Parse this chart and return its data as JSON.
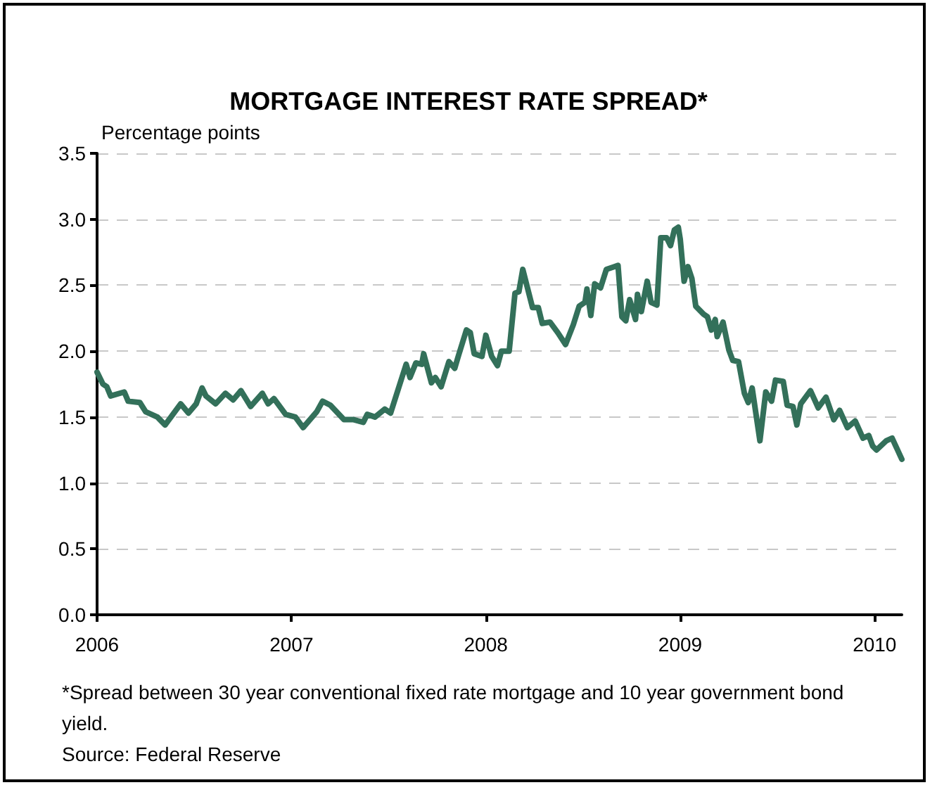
{
  "chart_data": {
    "type": "line",
    "title": "MORTGAGE INTEREST RATE SPREAD*",
    "ylabel": "Percentage points",
    "annotations": [
      "*Spread between 30 year conventional fixed rate mortgage and 10 year government bond yield.",
      "Source: Federal Reserve"
    ],
    "x": [
      2006.0,
      2006.03,
      2006.05,
      2006.07,
      2006.14,
      2006.16,
      2006.22,
      2006.25,
      2006.31,
      2006.35,
      2006.43,
      2006.47,
      2006.51,
      2006.54,
      2006.56,
      2006.61,
      2006.66,
      2006.7,
      2006.74,
      2006.79,
      2006.85,
      2006.88,
      2006.91,
      2006.97,
      2007.02,
      2007.06,
      2007.13,
      2007.16,
      2007.2,
      2007.27,
      2007.32,
      2007.37,
      2007.39,
      2007.43,
      2007.48,
      2007.51,
      2007.59,
      2007.61,
      2007.64,
      2007.67,
      2007.68,
      2007.72,
      2007.74,
      2007.77,
      2007.81,
      2007.84,
      2007.86,
      2007.9,
      2007.92,
      2007.94,
      2007.98,
      2008.0,
      2008.03,
      2008.06,
      2008.08,
      2008.12,
      2008.15,
      2008.17,
      2008.19,
      2008.24,
      2008.27,
      2008.29,
      2008.33,
      2008.37,
      2008.41,
      2008.45,
      2008.48,
      2008.51,
      2008.52,
      2008.54,
      2008.56,
      2008.59,
      2008.62,
      2008.66,
      2008.68,
      2008.7,
      2008.72,
      2008.74,
      2008.77,
      2008.78,
      2008.8,
      2008.83,
      2008.85,
      2008.88,
      2008.9,
      2008.93,
      2008.95,
      2008.97,
      2008.99,
      2009.0,
      2009.02,
      2009.04,
      2009.06,
      2009.08,
      2009.12,
      2009.14,
      2009.16,
      2009.18,
      2009.19,
      2009.22,
      2009.25,
      2009.27,
      2009.3,
      2009.33,
      2009.35,
      2009.37,
      2009.41,
      2009.44,
      2009.47,
      2009.49,
      2009.53,
      2009.55,
      2009.58,
      2009.6,
      2009.62,
      2009.67,
      2009.71,
      2009.75,
      2009.79,
      2009.82,
      2009.86,
      2009.9,
      2009.94,
      2009.97,
      2009.99,
      2010.01,
      2010.06,
      2010.09,
      2010.14
    ],
    "series": [
      {
        "color": "#33705a",
        "values": [
          1.84,
          1.75,
          1.73,
          1.66,
          1.69,
          1.62,
          1.61,
          1.54,
          1.5,
          1.44,
          1.6,
          1.53,
          1.6,
          1.72,
          1.66,
          1.6,
          1.68,
          1.63,
          1.7,
          1.58,
          1.68,
          1.6,
          1.64,
          1.52,
          1.5,
          1.42,
          1.54,
          1.62,
          1.59,
          1.48,
          1.48,
          1.46,
          1.52,
          1.5,
          1.56,
          1.53,
          1.9,
          1.8,
          1.91,
          1.9,
          1.98,
          1.76,
          1.8,
          1.73,
          1.92,
          1.87,
          1.97,
          2.16,
          2.14,
          1.98,
          1.96,
          2.12,
          1.96,
          1.89,
          2.0,
          2.0,
          2.44,
          2.45,
          2.62,
          2.33,
          2.33,
          2.21,
          2.22,
          2.14,
          2.05,
          2.2,
          2.34,
          2.37,
          2.47,
          2.27,
          2.51,
          2.48,
          2.62,
          2.64,
          2.65,
          2.26,
          2.23,
          2.39,
          2.24,
          2.43,
          2.3,
          2.53,
          2.37,
          2.35,
          2.86,
          2.86,
          2.8,
          2.92,
          2.94,
          2.85,
          2.53,
          2.64,
          2.55,
          2.34,
          2.28,
          2.26,
          2.16,
          2.24,
          2.11,
          2.22,
          2.01,
          1.93,
          1.92,
          1.68,
          1.61,
          1.72,
          1.32,
          1.69,
          1.62,
          1.78,
          1.77,
          1.59,
          1.58,
          1.44,
          1.6,
          1.7,
          1.57,
          1.65,
          1.48,
          1.55,
          1.42,
          1.47,
          1.34,
          1.36,
          1.28,
          1.25,
          1.32,
          1.34,
          1.18
        ]
      }
    ],
    "xlim": [
      2006,
      2010.14
    ],
    "xticks": [
      2006,
      2007,
      2008,
      2009,
      2010
    ],
    "ylim": [
      0,
      3.5
    ],
    "yticks": [
      {
        "value": 0,
        "label": "0.0"
      },
      {
        "value": 0.5,
        "label": "0.5"
      },
      {
        "value": 1,
        "label": "1.0"
      },
      {
        "value": 1.5,
        "label": "1.5"
      },
      {
        "value": 2,
        "label": "2.0"
      },
      {
        "value": 2.5,
        "label": "2.5"
      },
      {
        "value": 3,
        "label": "3.0"
      },
      {
        "value": 3.5,
        "label": "3.5"
      }
    ],
    "grid": "y",
    "line_style": "solid"
  }
}
